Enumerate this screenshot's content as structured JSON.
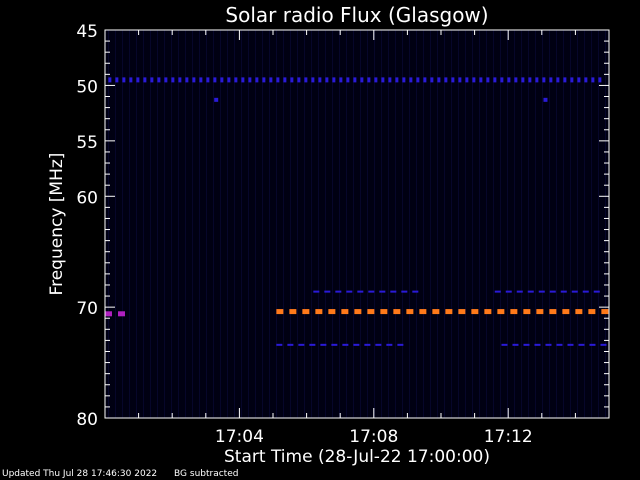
{
  "chart_data": {
    "type": "heatmap",
    "title": "Solar radio Flux (Glasgow)",
    "xlabel": "Start Time (28-Jul-22 17:00:00)",
    "ylabel": "Frequency [MHz]",
    "ylim": [
      45,
      80
    ],
    "y_ticks": [
      {
        "label": "45",
        "value": 45
      },
      {
        "label": "50",
        "value": 50
      },
      {
        "label": "55",
        "value": 55
      },
      {
        "label": "60",
        "value": 60
      },
      {
        "label": "70",
        "value": 70
      },
      {
        "label": "80",
        "value": 80
      }
    ],
    "xlim_minutes": [
      0,
      15
    ],
    "x_ticks": [
      {
        "label": "17:04",
        "value": 4
      },
      {
        "label": "17:08",
        "value": 8
      },
      {
        "label": "17:12",
        "value": 12
      }
    ],
    "background_color": "#000012",
    "features": [
      {
        "name": "",
        "freq": 49.5,
        "t_start": 0.1,
        "t_end": 14.8,
        "color": "#2a1ad8",
        "style": "dotted"
      },
      {
        "name": "",
        "freq": 51.3,
        "t_start": 3.25,
        "t_end": 3.4,
        "color": "#2a1ad8",
        "style": "dot"
      },
      {
        "name": "",
        "freq": 51.3,
        "t_start": 13.05,
        "t_end": 13.2,
        "color": "#2a1ad8",
        "style": "dot"
      },
      {
        "name": "",
        "freq": 68.6,
        "t_start": 6.2,
        "t_end": 9.2,
        "color": "#2a1ad8",
        "style": "sparse"
      },
      {
        "name": "",
        "freq": 68.6,
        "t_start": 11.6,
        "t_end": 14.8,
        "color": "#2a1ad8",
        "style": "sparse"
      },
      {
        "name": "",
        "freq": 70.4,
        "t_start": 5.1,
        "t_end": 14.8,
        "color": "#ff7a1a",
        "style": "dashed"
      },
      {
        "name": "",
        "freq": 70.6,
        "t_start": 0.0,
        "t_end": 0.6,
        "color": "#b020c0",
        "style": "dashed"
      },
      {
        "name": "",
        "freq": 73.4,
        "t_start": 5.1,
        "t_end": 8.9,
        "color": "#2a1ad8",
        "style": "sparse"
      },
      {
        "name": "",
        "freq": 73.4,
        "t_start": 11.8,
        "t_end": 14.8,
        "color": "#2a1ad8",
        "style": "sparse"
      }
    ]
  },
  "footer": {
    "updated": "Updated Thu Jul 28 17:46:30 2022",
    "bg_note": "BG subtracted"
  }
}
